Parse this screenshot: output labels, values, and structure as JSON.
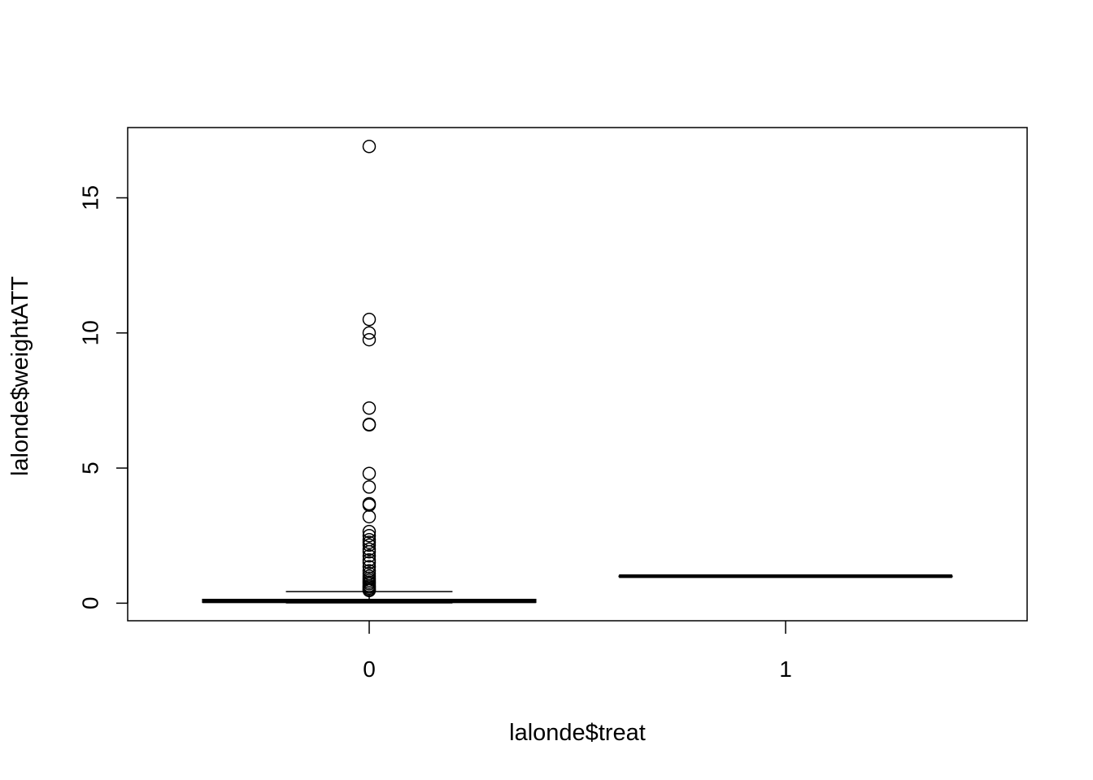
{
  "chart_data": {
    "type": "boxplot",
    "xlabel": "lalonde$treat",
    "ylabel": "lalonde$weightATT",
    "categories": [
      "0",
      "1"
    ],
    "y_ticks": [
      "0",
      "5",
      "10",
      "15"
    ],
    "ylim": [
      -0.65,
      17.6
    ],
    "grid": false,
    "boxes": [
      {
        "category": "0",
        "whisker_low": 0.01,
        "q1": 0.03,
        "median": 0.07,
        "q3": 0.14,
        "whisker_high": 0.43,
        "outliers": [
          16.9,
          10.5,
          10.0,
          9.75,
          7.22,
          6.62,
          6.6,
          4.8,
          4.3,
          3.68,
          3.63,
          3.2,
          2.65,
          2.5,
          2.35,
          2.25,
          2.15,
          2.0,
          1.9,
          1.75,
          1.6,
          1.5,
          1.35,
          1.2,
          1.1,
          1.0,
          0.92,
          0.85,
          0.78,
          0.72,
          0.65,
          0.6,
          0.55,
          0.5,
          0.47
        ]
      },
      {
        "category": "1",
        "whisker_low": 1.0,
        "q1": 1.0,
        "median": 1.0,
        "q3": 1.0,
        "whisker_high": 1.0,
        "outliers": []
      }
    ]
  }
}
